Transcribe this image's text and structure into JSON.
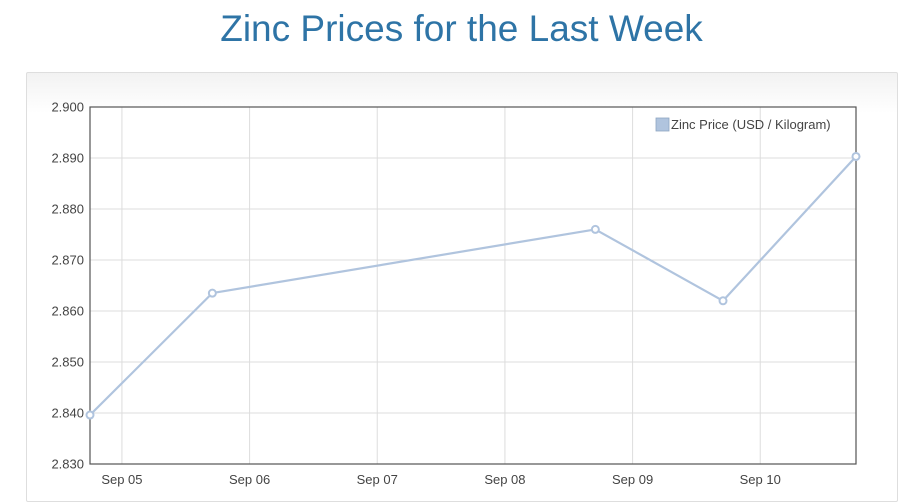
{
  "page": {
    "title": "Zinc Prices for the Last Week"
  },
  "chart_data": {
    "type": "line",
    "title": "Zinc Prices for the Last Week",
    "xlabel": "",
    "ylabel": "",
    "x_tick_labels": [
      "Sep 05",
      "Sep 06",
      "Sep 07",
      "Sep 08",
      "Sep 09",
      "Sep 10"
    ],
    "x_ticks": [
      "2023-09-05",
      "2023-09-06",
      "2023-09-07",
      "2023-09-08",
      "2023-09-09",
      "2023-09-10"
    ],
    "xlim": [
      "2023-09-04 18:00",
      "2023-09-10 18:00"
    ],
    "ylim": [
      2.83,
      2.9
    ],
    "y_ticks": [
      2.83,
      2.84,
      2.85,
      2.86,
      2.87,
      2.88,
      2.89,
      2.9
    ],
    "y_tick_labels": [
      "2.830",
      "2.840",
      "2.850",
      "2.860",
      "2.870",
      "2.880",
      "2.890",
      "2.900"
    ],
    "grid": true,
    "legend_position": "top-right",
    "series": [
      {
        "name": "Zinc Price (USD / Kilogram)",
        "color": "#b0c4de",
        "points": [
          {
            "x": "2023-09-04 18:00",
            "y": 2.8396
          },
          {
            "x": "2023-09-05 17:00",
            "y": 2.8635
          },
          {
            "x": "2023-09-08 17:00",
            "y": 2.876
          },
          {
            "x": "2023-09-09 17:00",
            "y": 2.862
          },
          {
            "x": "2023-09-10 18:00",
            "y": 2.8903
          }
        ]
      }
    ]
  }
}
